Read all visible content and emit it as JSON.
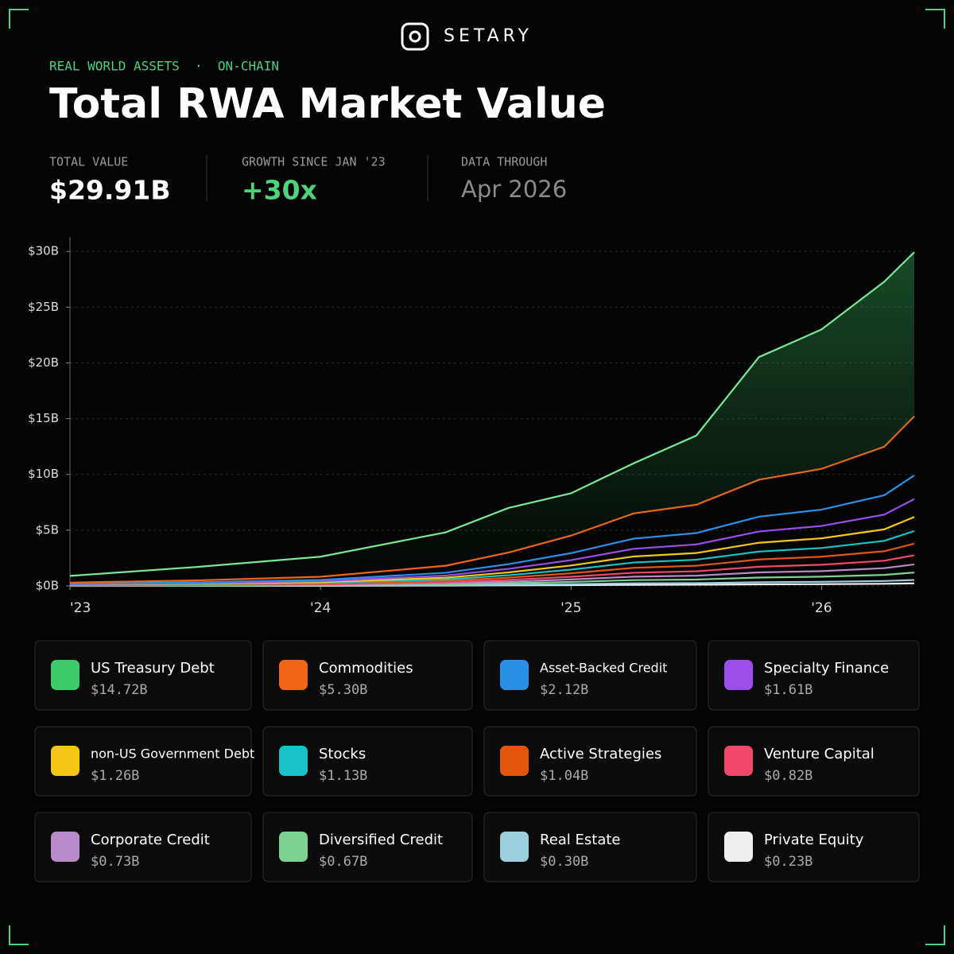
{
  "brand": "SETARY",
  "kicker": "REAL WORLD ASSETS  ·  ON-CHAIN",
  "stats": [
    {
      "label": "TOTAL VALUE",
      "value": "$29.91B"
    },
    {
      "label": "GROWTH SINCE JAN '23",
      "value": "+30x"
    },
    {
      "label": "DATA THROUGH",
      "value": "Apr 2026"
    }
  ],
  "chart_data": {
    "type": "stacked_line",
    "title": "Total RWA Market Value",
    "x": [
      2023,
      2023.5,
      2024,
      2024.5,
      2024.75,
      2025,
      2025.25,
      2025.5,
      2025.75,
      2026,
      2026.25,
      2026.37
    ],
    "xlim": [
      2023,
      2026.37
    ],
    "xticks": [
      {
        "value": 2023,
        "label": "'23"
      },
      {
        "value": 2024,
        "label": "'24"
      },
      {
        "value": 2025,
        "label": "'25"
      },
      {
        "value": 2026,
        "label": "'26"
      }
    ],
    "ylim": [
      0,
      31.3
    ],
    "yticks": [
      {
        "value": 0,
        "label": "$0B"
      },
      {
        "value": 5,
        "label": "$5B"
      },
      {
        "value": 10,
        "label": "$10B"
      },
      {
        "value": 15,
        "label": "$15B"
      },
      {
        "value": 20,
        "label": "$20B"
      },
      {
        "value": 25,
        "label": "$25B"
      },
      {
        "value": 30,
        "label": "$30B"
      }
    ],
    "grid": true,
    "series": [
      {
        "name": "US Treasury Debt",
        "color": "#3ec96b",
        "line": "#79e893",
        "value_label": "$14.72B",
        "values": [
          0.6,
          1.2,
          1.8,
          3.0,
          4.0,
          3.8,
          4.5,
          6.2,
          11.0,
          12.5,
          14.8,
          14.72
        ]
      },
      {
        "name": "Commodities",
        "color": "#f06418",
        "value_label": "$5.30B",
        "values": [
          0.11,
          0.17,
          0.28,
          0.63,
          1.04,
          1.57,
          2.26,
          2.54,
          3.31,
          3.66,
          4.35,
          5.3
        ]
      },
      {
        "name": "Asset-Backed Credit",
        "color": "#2b8fe6",
        "value_label": "$2.12B",
        "values": [
          0.04,
          0.07,
          0.11,
          0.25,
          0.42,
          0.63,
          0.91,
          1.02,
          1.33,
          1.46,
          1.74,
          2.12
        ]
      },
      {
        "name": "Specialty Finance",
        "color": "#9b4de8",
        "value_label": "$1.61B",
        "values": [
          0.03,
          0.05,
          0.09,
          0.19,
          0.32,
          0.48,
          0.69,
          0.77,
          1.01,
          1.11,
          1.32,
          1.61
        ]
      },
      {
        "name": "non-US Government Debt",
        "color": "#f5c518",
        "value_label": "$1.26B",
        "values": [
          0.03,
          0.04,
          0.07,
          0.15,
          0.25,
          0.37,
          0.54,
          0.6,
          0.79,
          0.87,
          1.03,
          1.26
        ]
      },
      {
        "name": "Stocks",
        "color": "#18c2c9",
        "value_label": "$1.13B",
        "values": [
          0.02,
          0.04,
          0.06,
          0.13,
          0.22,
          0.33,
          0.48,
          0.54,
          0.71,
          0.78,
          0.93,
          1.13
        ]
      },
      {
        "name": "Active Strategies",
        "color": "#e0560e",
        "value_label": "$1.04B",
        "values": [
          0.02,
          0.03,
          0.06,
          0.12,
          0.2,
          0.31,
          0.44,
          0.5,
          0.65,
          0.72,
          0.85,
          1.04
        ]
      },
      {
        "name": "Venture Capital",
        "color": "#f0476a",
        "value_label": "$0.82B",
        "values": [
          0.02,
          0.03,
          0.04,
          0.1,
          0.16,
          0.24,
          0.35,
          0.39,
          0.51,
          0.57,
          0.67,
          0.82
        ]
      },
      {
        "name": "Corporate Credit",
        "color": "#b78ac9",
        "value_label": "$0.73B",
        "values": [
          0.01,
          0.02,
          0.04,
          0.09,
          0.14,
          0.22,
          0.31,
          0.35,
          0.46,
          0.5,
          0.6,
          0.73
        ]
      },
      {
        "name": "Diversified Credit",
        "color": "#7dd192",
        "value_label": "$0.67B",
        "values": [
          0.01,
          0.02,
          0.04,
          0.08,
          0.13,
          0.2,
          0.29,
          0.32,
          0.42,
          0.46,
          0.55,
          0.67
        ]
      },
      {
        "name": "Real Estate",
        "color": "#9ccfdc",
        "value_label": "$0.30B",
        "values": [
          0.01,
          0.01,
          0.02,
          0.04,
          0.06,
          0.09,
          0.13,
          0.14,
          0.19,
          0.21,
          0.25,
          0.3
        ]
      },
      {
        "name": "Private Equity",
        "color": "#eeeeee",
        "value_label": "$0.23B",
        "values": [
          0.0,
          0.01,
          0.01,
          0.03,
          0.05,
          0.07,
          0.1,
          0.11,
          0.14,
          0.16,
          0.19,
          0.23
        ]
      }
    ]
  }
}
